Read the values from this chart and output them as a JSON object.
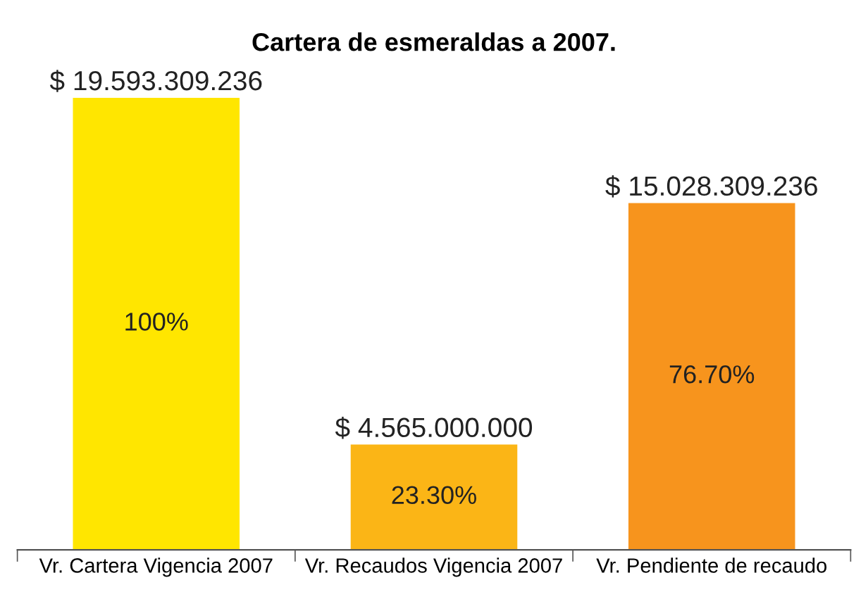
{
  "chart_data": {
    "type": "bar",
    "title": "Cartera de esmeraldas a 2007.",
    "categories": [
      "Vr. Cartera Vigencia 2007",
      "Vr. Recaudos Vigencia 2007",
      "Vr. Pendiente de recaudo"
    ],
    "values": [
      19593309236,
      4565000000,
      15028309236
    ],
    "colors": [
      "#ffe600",
      "#fbb516",
      "#f7941d"
    ],
    "value_labels": [
      "$ 19.593.309.236",
      "$ 4.565.000.000",
      "$ 15.028.309.236"
    ],
    "annotations": [
      "100%",
      "23.30%",
      "76.70%"
    ],
    "grid": false,
    "legend": false
  }
}
